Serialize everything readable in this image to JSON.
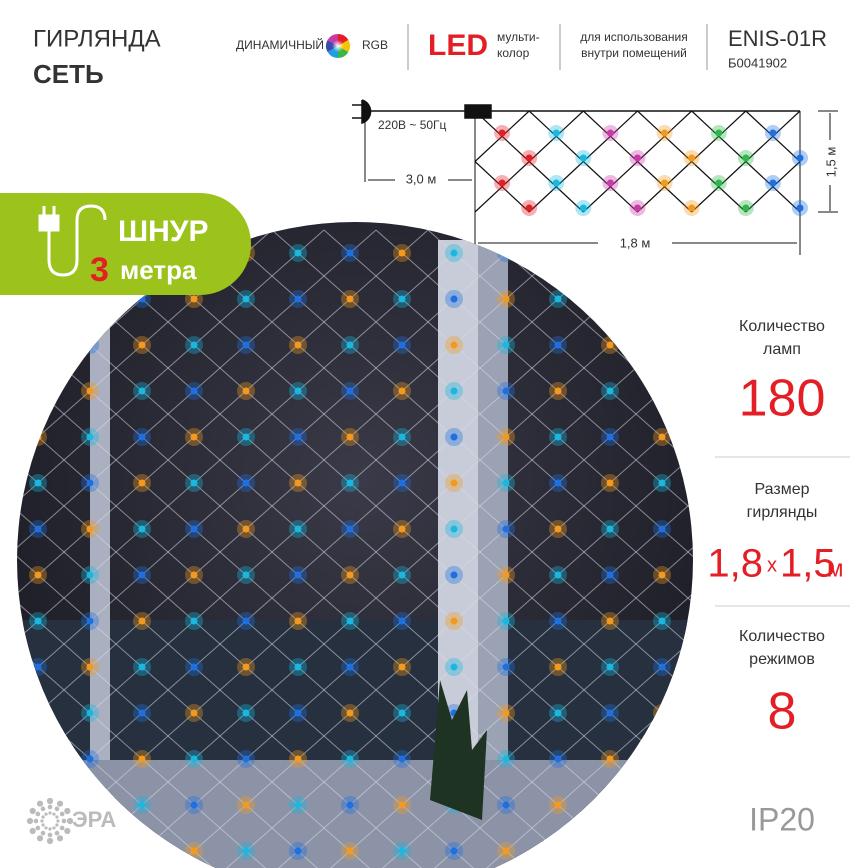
{
  "header": {
    "title_line1": "ГИРЛЯНДА",
    "title_line2": "СЕТЬ",
    "badge_dynamic": "ДИНАМИЧНЫЙ",
    "badge_rgb": "RGB",
    "led": "LED",
    "led_note": [
      "мульти-",
      "колор"
    ],
    "usage": [
      "для использования",
      "внутри помещений"
    ],
    "model": "ENIS-01R",
    "code": "Б0041902"
  },
  "diagram": {
    "voltage": "220В ~ 50Гц",
    "cord_length": "3,0 м",
    "height": "1,5 м",
    "width": "1,8 м"
  },
  "cord_badge": {
    "word": "ШНУР",
    "number": "3",
    "unit": "метра"
  },
  "specs": [
    {
      "label": [
        "Количество",
        "ламп"
      ],
      "value": "180"
    },
    {
      "label": [
        "Размер",
        "гирлянды"
      ],
      "value_parts": [
        "1,8",
        "x",
        "1,5",
        "м"
      ]
    },
    {
      "label": [
        "Количество",
        "режимов"
      ],
      "value": "8"
    }
  ],
  "footer": {
    "brand": "ЭРА",
    "protection": "IP20"
  }
}
